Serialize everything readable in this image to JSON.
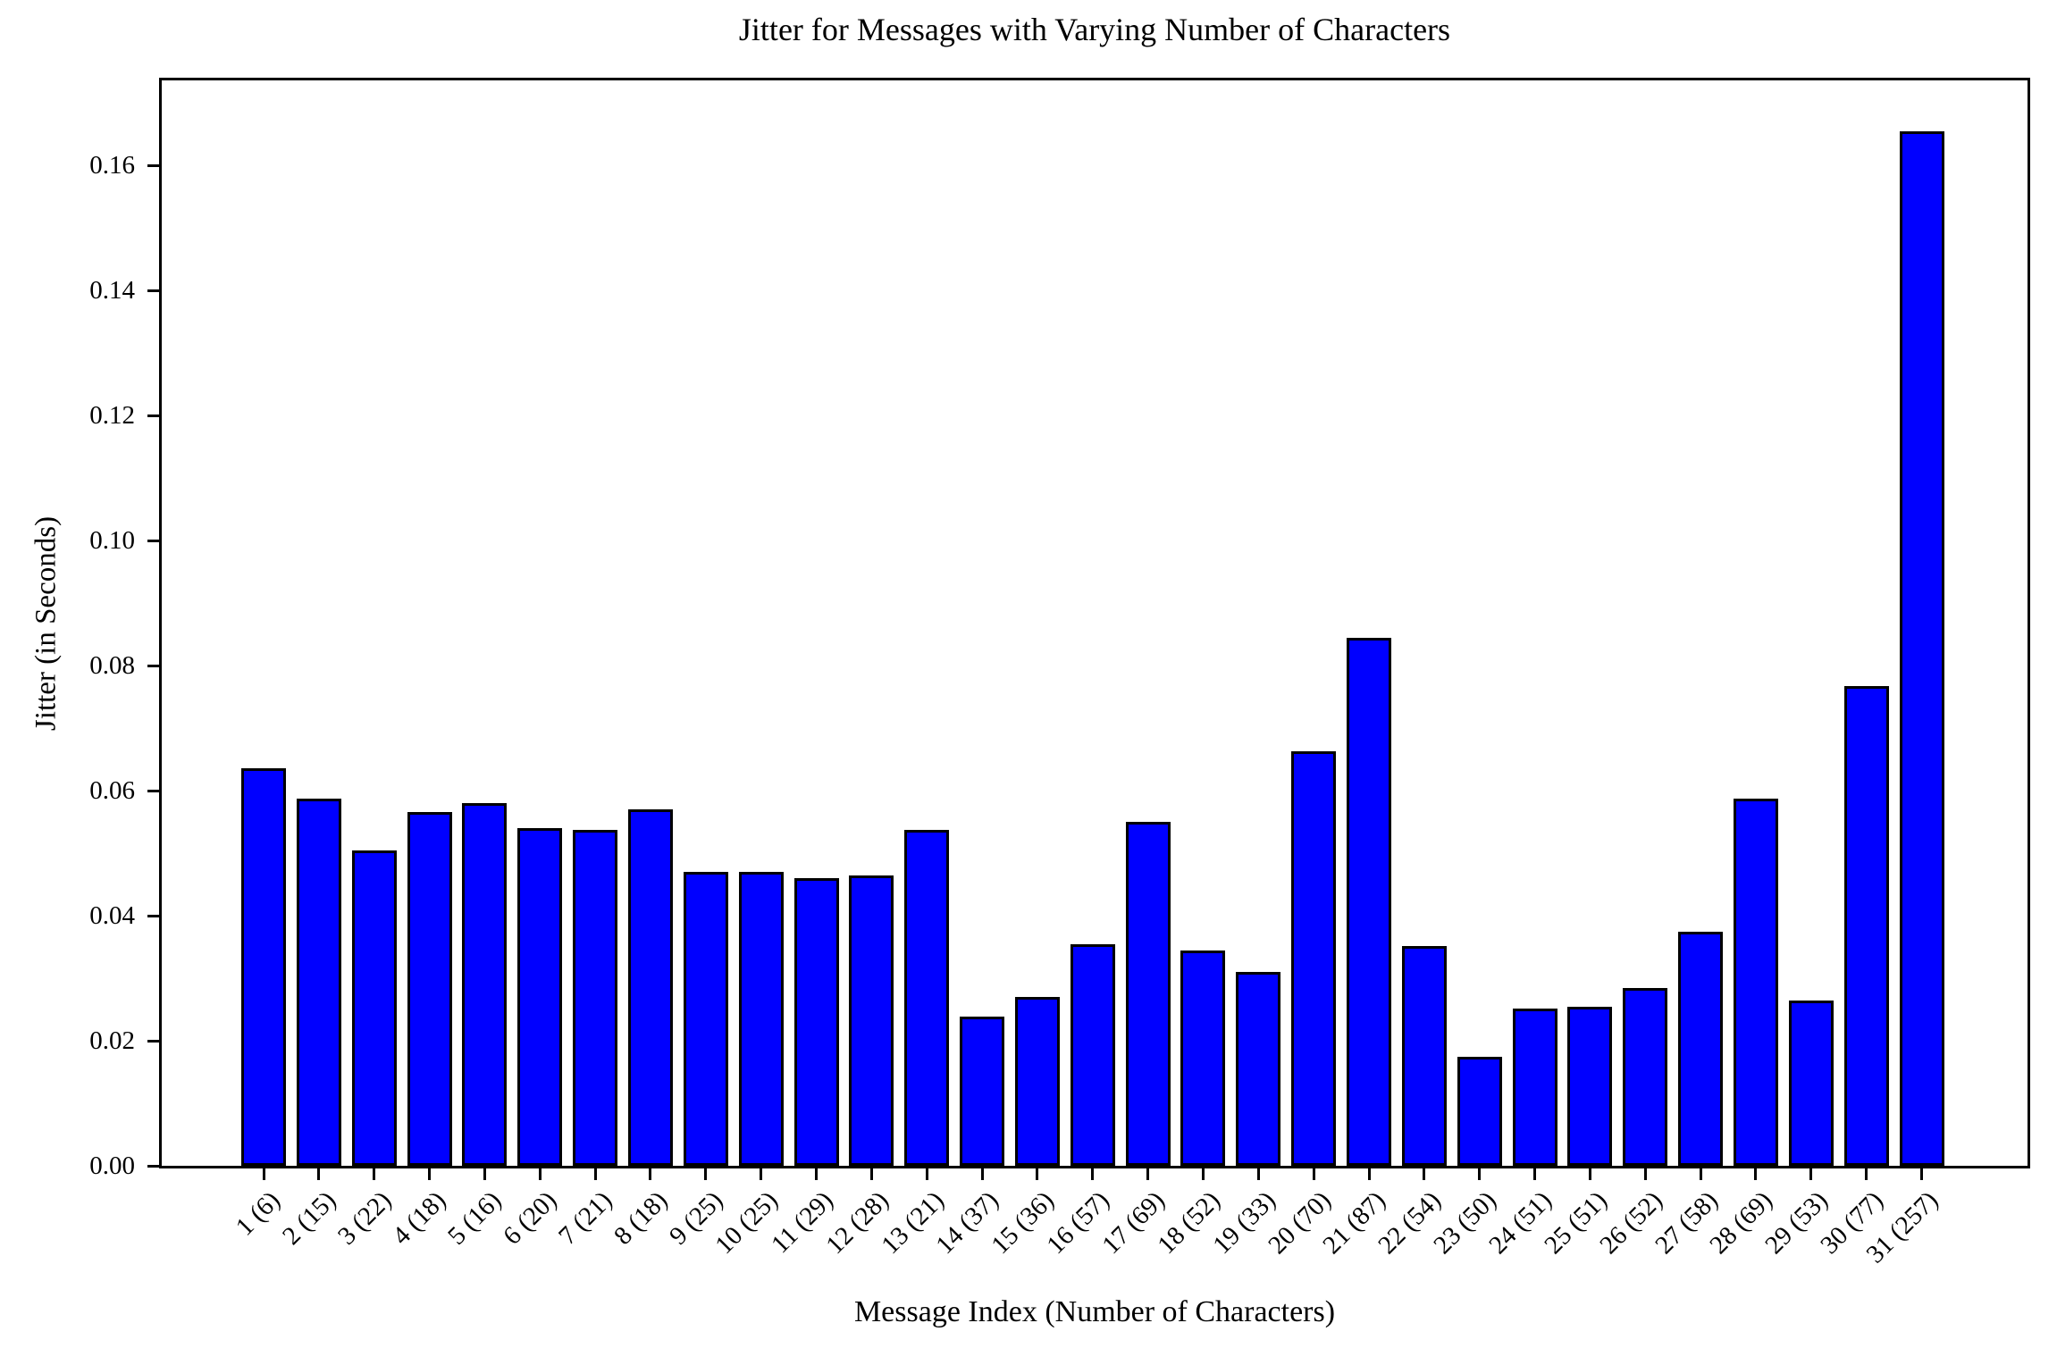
{
  "chart_data": {
    "type": "bar",
    "title": "Jitter for Messages with Varying Number of Characters",
    "xlabel": "Message Index (Number of Characters)",
    "ylabel": "Jitter (in Seconds)",
    "categories": [
      "1 (6)",
      "2 (15)",
      "3 (22)",
      "4 (18)",
      "5 (16)",
      "6 (20)",
      "7 (21)",
      "8 (18)",
      "9 (25)",
      "10 (25)",
      "11 (29)",
      "12 (28)",
      "13 (21)",
      "14 (37)",
      "15 (36)",
      "16 (57)",
      "17 (69)",
      "18 (52)",
      "19 (33)",
      "20 (70)",
      "21 (87)",
      "22 (54)",
      "23 (50)",
      "24 (51)",
      "25 (51)",
      "26 (52)",
      "27 (58)",
      "28 (69)",
      "29 (53)",
      "30 (77)",
      "31 (257)"
    ],
    "values": [
      0.0636,
      0.0588,
      0.0505,
      0.0566,
      0.0581,
      0.0541,
      0.0537,
      0.057,
      0.0471,
      0.0471,
      0.0461,
      0.0464,
      0.0537,
      0.0239,
      0.027,
      0.0354,
      0.0551,
      0.0344,
      0.031,
      0.0663,
      0.0845,
      0.0352,
      0.0175,
      0.0252,
      0.0255,
      0.0284,
      0.0375,
      0.0588,
      0.0264,
      0.0768,
      0.1655
    ],
    "ylim": [
      0,
      0.1737
    ],
    "yticks": [
      0.0,
      0.02,
      0.04,
      0.06,
      0.08,
      0.1,
      0.12,
      0.14,
      0.16
    ],
    "ytick_labels": [
      "0.00",
      "0.02",
      "0.04",
      "0.06",
      "0.08",
      "0.10",
      "0.12",
      "0.14",
      "0.16"
    ],
    "xtick_rotation_deg": 45,
    "grid": false,
    "legend": null,
    "bar_color": "#0000ff",
    "bar_edge_color": "#000000",
    "background_color": "#ffffff",
    "spine_color": "#000000"
  }
}
